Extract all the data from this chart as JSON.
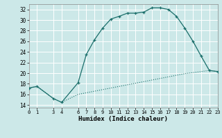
{
  "xlabel": "Humidex (Indice chaleur)",
  "bg_color": "#cce8e8",
  "line_color": "#1a6e6a",
  "grid_color": "#ffffff",
  "x_main": [
    0,
    1,
    3,
    4,
    6,
    7,
    8,
    9,
    10,
    11,
    12,
    13,
    14,
    15,
    16,
    17,
    18,
    19,
    20,
    21,
    22,
    23
  ],
  "y_main": [
    17.2,
    17.5,
    15.2,
    14.5,
    18.2,
    23.5,
    26.3,
    28.5,
    30.2,
    30.7,
    31.3,
    31.3,
    31.5,
    32.3,
    32.3,
    32.0,
    30.7,
    28.5,
    26.0,
    23.2,
    20.5,
    20.3
  ],
  "x_low": [
    0,
    1,
    3,
    4,
    6,
    7,
    8,
    9,
    10,
    11,
    12,
    13,
    14,
    15,
    16,
    17,
    18,
    19,
    20,
    21,
    22,
    23
  ],
  "y_low": [
    17.2,
    17.5,
    15.2,
    14.5,
    16.0,
    16.3,
    16.6,
    16.9,
    17.2,
    17.5,
    17.8,
    18.1,
    18.4,
    18.7,
    19.0,
    19.3,
    19.6,
    19.9,
    20.1,
    20.3,
    20.5,
    20.3
  ],
  "xlim": [
    0,
    23
  ],
  "ylim": [
    13.5,
    33
  ],
  "yticks": [
    14,
    16,
    18,
    20,
    22,
    24,
    26,
    28,
    30,
    32
  ],
  "xticks": [
    0,
    1,
    3,
    4,
    6,
    7,
    8,
    9,
    10,
    11,
    12,
    13,
    14,
    15,
    16,
    17,
    18,
    19,
    20,
    21,
    22,
    23
  ]
}
